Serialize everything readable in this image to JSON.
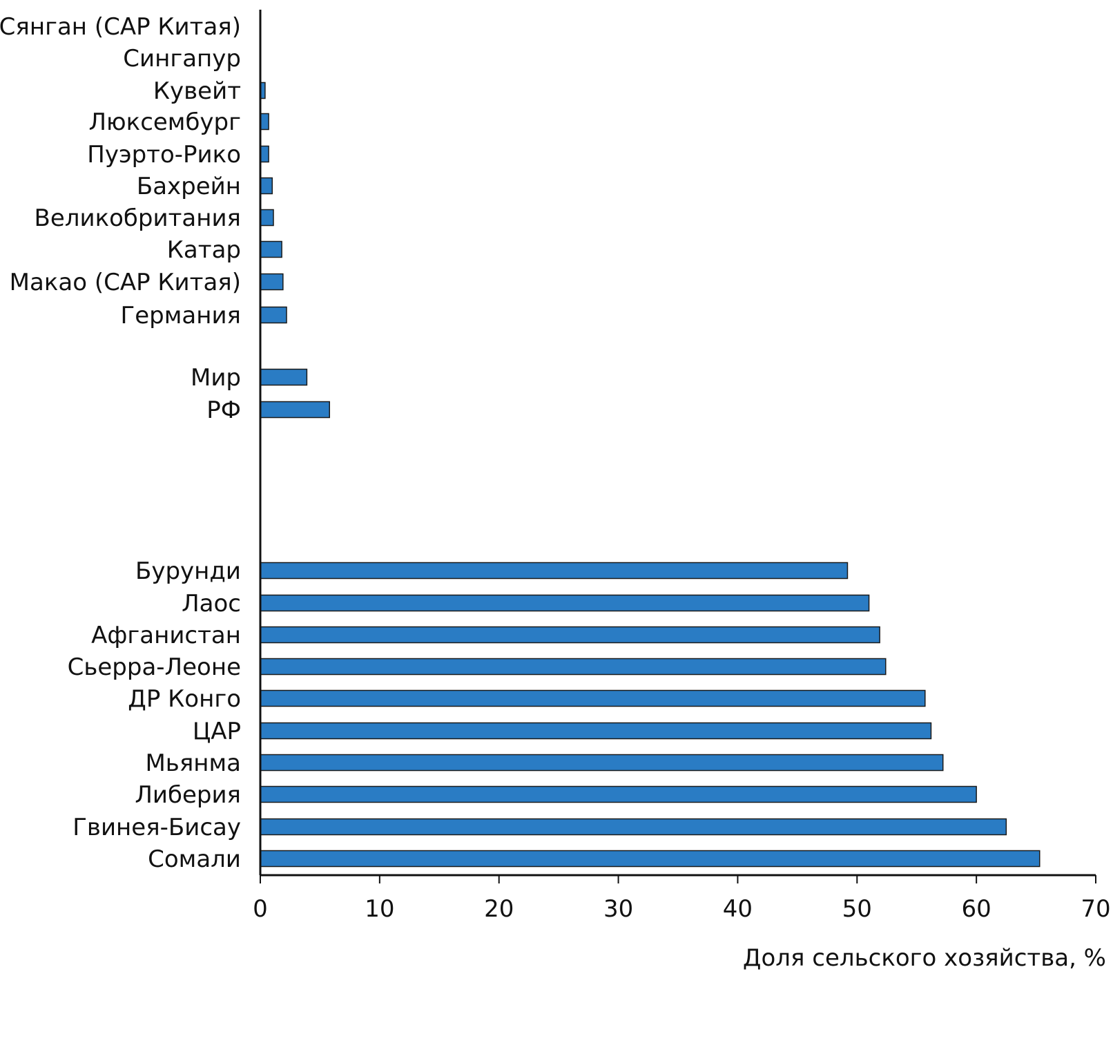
{
  "chart_data": {
    "type": "bar",
    "orientation": "horizontal",
    "title": "",
    "xlabel": "Доля сельского хозяйства, %",
    "ylabel": "",
    "xlim": [
      0,
      70
    ],
    "xticks": [
      0,
      10,
      20,
      30,
      40,
      50,
      60,
      70
    ],
    "grid": false,
    "bar_color": "#2a7cc4",
    "categories": [
      "Сянган (САР Китая)",
      "Сингапур",
      "Кувейт",
      "Люксембург",
      "Пуэрто-Рико",
      "Бахрейн",
      "Великобритания",
      "Катар",
      "Макао (САР Китая)",
      "Германия",
      "Мир",
      "РФ",
      "Бурунди",
      "Лаос",
      "Афганистан",
      "Сьерра-Леоне",
      "ДР Конго",
      "ЦАР",
      "Мьянма",
      "Либерия",
      "Гвинея-Бисау",
      "Сомали"
    ],
    "values": [
      0.0,
      0.0,
      0.4,
      0.7,
      0.7,
      1.0,
      1.1,
      1.8,
      1.9,
      2.2,
      3.9,
      5.8,
      49.2,
      51.0,
      51.9,
      52.4,
      55.7,
      56.2,
      57.2,
      60.0,
      62.5,
      65.3
    ]
  }
}
